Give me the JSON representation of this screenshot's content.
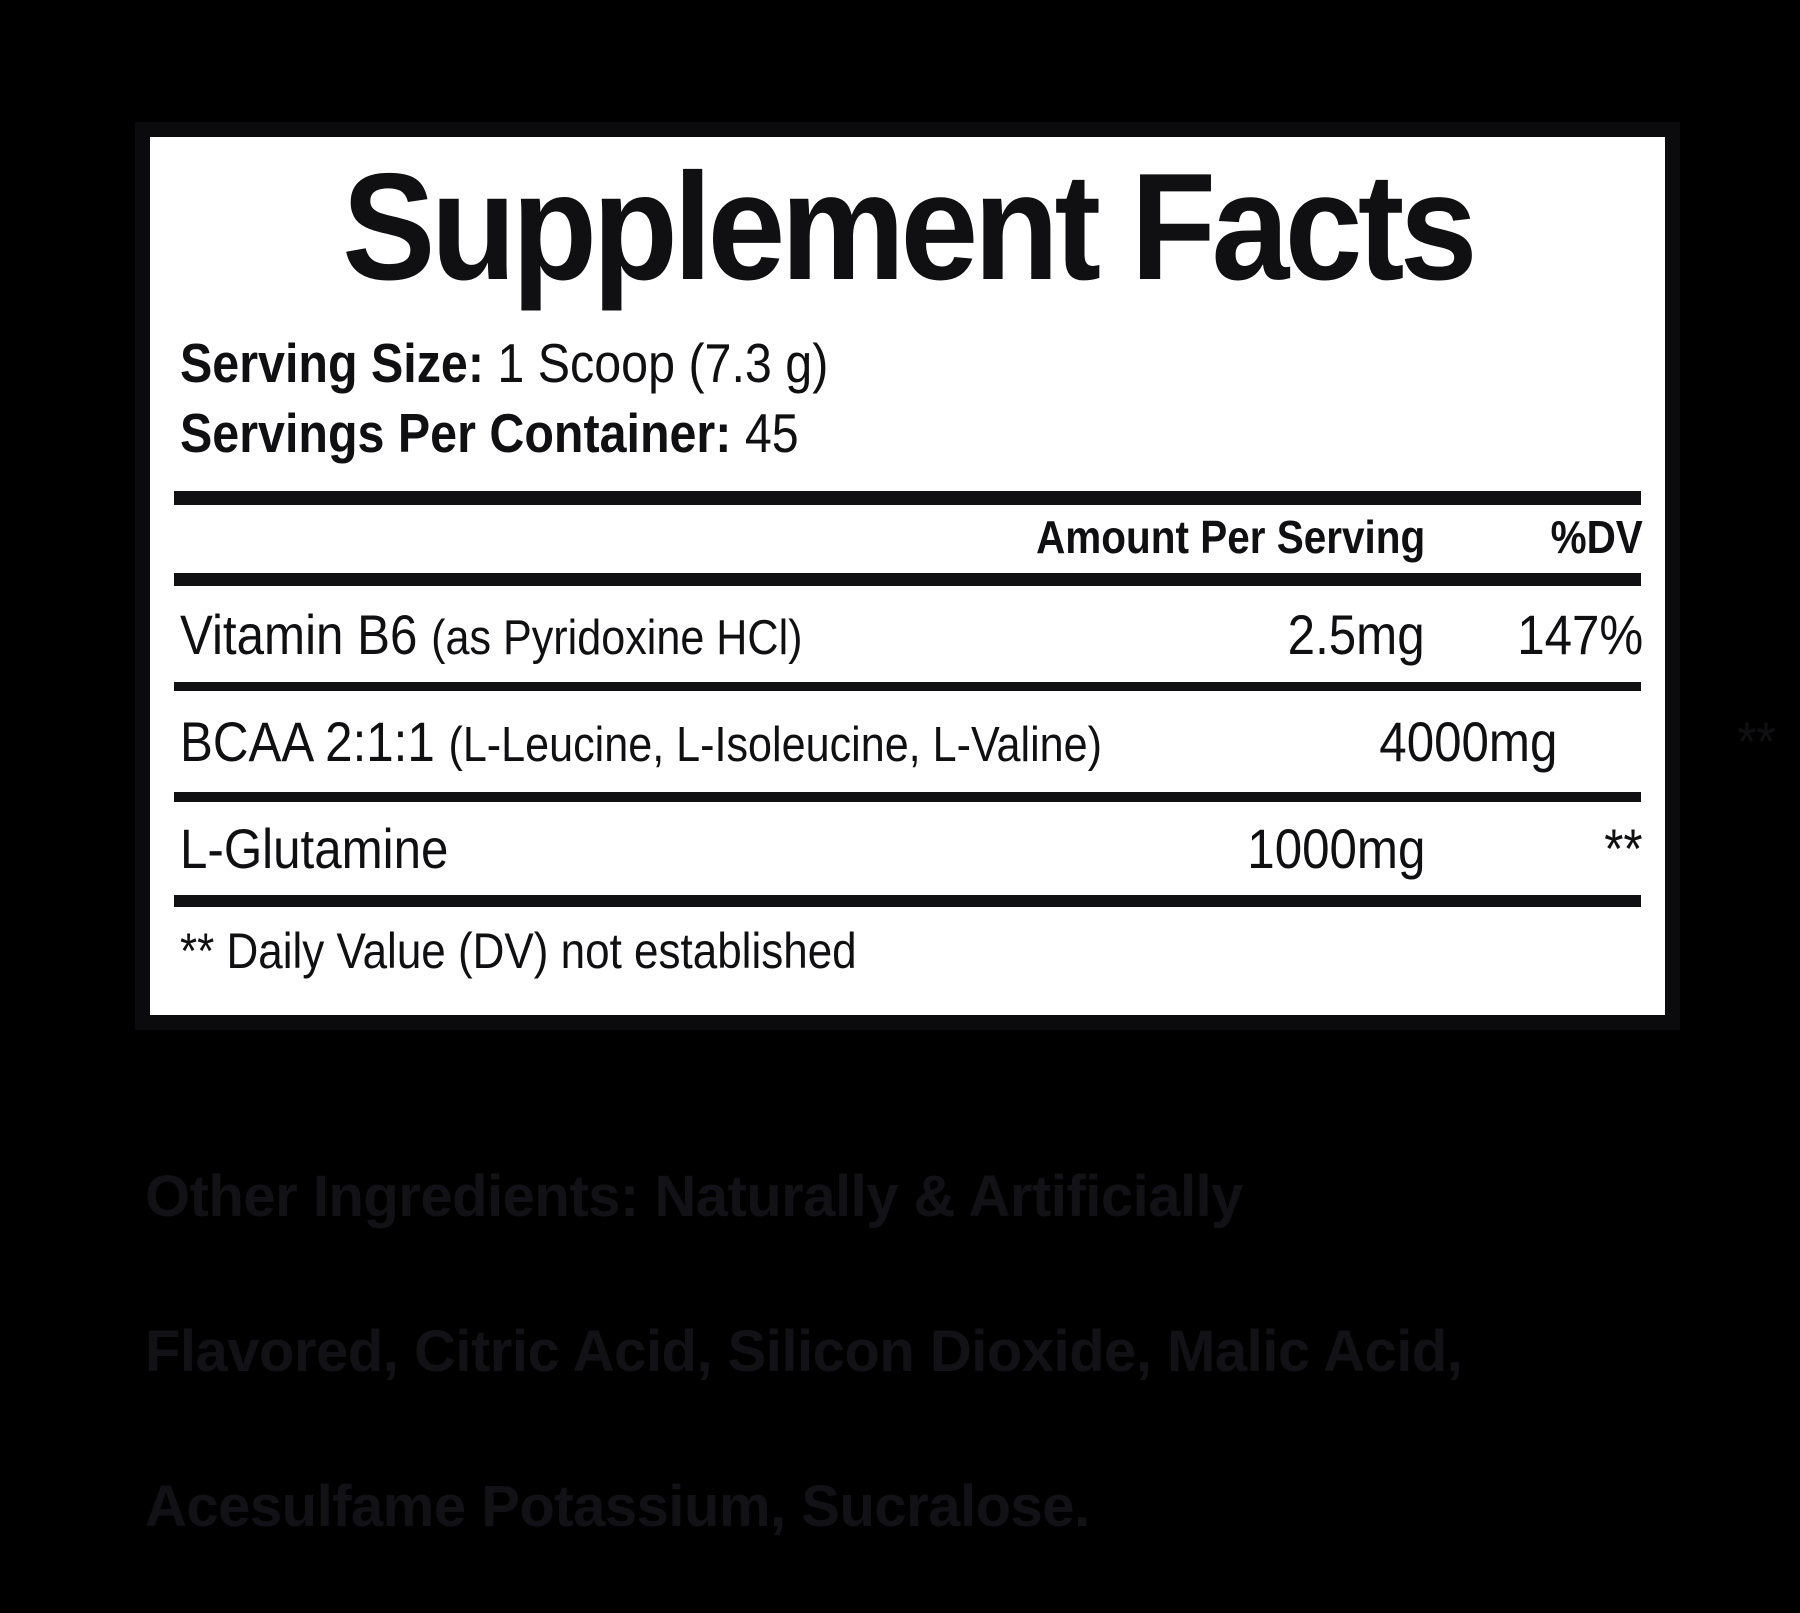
{
  "colors": {
    "page_background": "#000000",
    "panel_background": "#ffffff",
    "panel_border": "#0b0b0e",
    "panel_text": "#101013",
    "other_ingredients_text": "#121216"
  },
  "panel": {
    "title": "Supplement Facts",
    "serving_size_label": "Serving Size:",
    "serving_size_value": "1 Scoop (7.3 g)",
    "servings_label": "Servings Per Container:",
    "servings_value": "45",
    "header": {
      "amount": "Amount Per Serving",
      "dv": "%DV"
    },
    "rows": [
      {
        "name": "Vitamin B6",
        "detail": "(as Pyridoxine HCl)",
        "amount": "2.5mg",
        "dv": "147%"
      },
      {
        "name": "BCAA 2:1:1",
        "detail": "(L-Leucine, L-Isoleucine, L-Valine)",
        "amount": "4000mg",
        "dv": "**"
      },
      {
        "name": "L-Glutamine",
        "detail": "",
        "amount": "1000mg",
        "dv": "**"
      }
    ],
    "footnote": "** Daily Value (DV) not established"
  },
  "other_ingredients": {
    "label": "Other Ingredients:",
    "line1_rest": "Naturally & Artificially",
    "line2": "Flavored, Citric Acid, Silicon Dioxide, Malic Acid,",
    "line3": "Acesulfame Potassium, Sucralose."
  }
}
